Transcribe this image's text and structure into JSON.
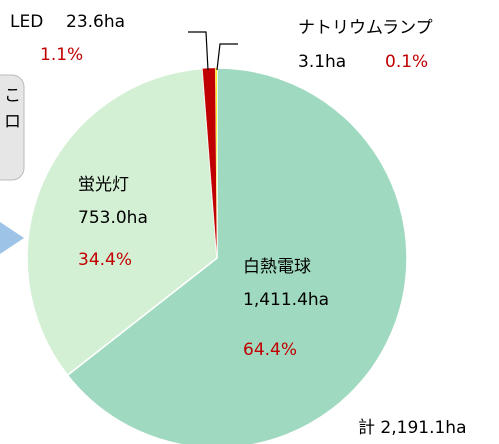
{
  "chart_data": {
    "type": "pie",
    "categories": [
      "白熱電球",
      "蛍光灯",
      "LED",
      "ナトリウムランプ"
    ],
    "values": [
      1411.4,
      753.0,
      23.6,
      3.1
    ],
    "value_labels": [
      "1,411.4ha",
      "753.0ha",
      "23.6ha",
      "3.1ha"
    ],
    "percentages": [
      64.4,
      34.4,
      1.1,
      0.1
    ],
    "percentage_labels": [
      "64.4%",
      "34.4%",
      "1.1%",
      "0.1%"
    ],
    "colors": [
      "#9fd9bf",
      "#d4f0d4",
      "#c00000",
      "#ffe600"
    ],
    "total_label": "計 2,191.1ha",
    "fragments": [
      "こ",
      "ロ"
    ]
  }
}
